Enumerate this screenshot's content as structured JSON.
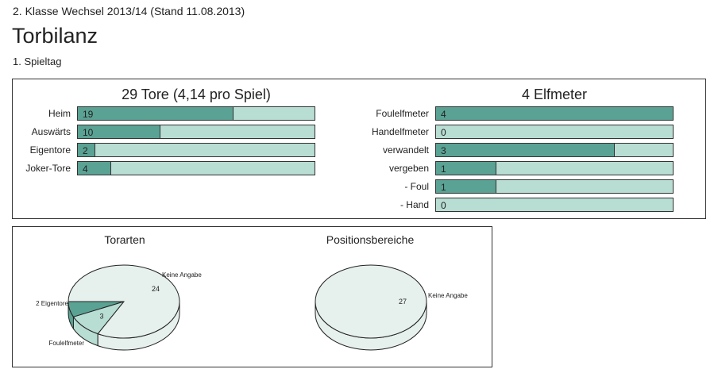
{
  "header": {
    "subtitle": "2. Klasse Wechsel 2013/14 (Stand 11.08.2013)",
    "title": "Torbilanz",
    "matchday": "1. Spieltag"
  },
  "colors": {
    "dark": "#5aa294",
    "light": "#b8ddd3",
    "pie_light": "#e6f0ec",
    "pie_mid": "#b8ddd3"
  },
  "goals": {
    "heading": "29 Tore (4,14 pro Spiel)",
    "total": 29,
    "rows": [
      {
        "label": "Heim",
        "value": 19
      },
      {
        "label": "Auswärts",
        "value": 10
      },
      {
        "label": "Eigentore",
        "value": 2
      },
      {
        "label": "Joker-Tore",
        "value": 4
      }
    ]
  },
  "penalties": {
    "heading": "4 Elfmeter",
    "total": 4,
    "rows": [
      {
        "label": "Foulelfmeter",
        "value": 4
      },
      {
        "label": "Handelfmeter",
        "value": 0
      },
      {
        "label": "verwandelt",
        "value": 3
      },
      {
        "label": "vergeben",
        "value": 1
      },
      {
        "label": "- Foul",
        "value": 1
      },
      {
        "label": "- Hand",
        "value": 0
      }
    ]
  },
  "chart_data": [
    {
      "type": "pie",
      "title": "Torarten",
      "slices": [
        {
          "label": "2 Eigentore",
          "value": 2,
          "value_label": ""
        },
        {
          "label": "Foulelfmeter",
          "value": 3,
          "value_label": "3"
        },
        {
          "label": "Keine Angabe",
          "value": 24,
          "value_label": "24"
        }
      ]
    },
    {
      "type": "pie",
      "title": "Positionsbereiche",
      "slices": [
        {
          "label": "Keine Angabe",
          "value": 27,
          "value_label": "27"
        }
      ]
    }
  ]
}
